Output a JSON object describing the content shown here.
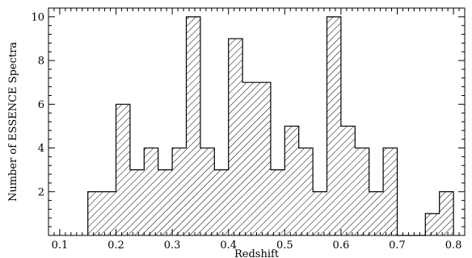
{
  "chart_data": {
    "type": "histogram",
    "title": "",
    "xlabel": "Redshift",
    "ylabel": "Number of ESSENCE Spectra",
    "xlim": [
      0.08,
      0.82
    ],
    "ylim": [
      0,
      10.4
    ],
    "bin_width": 0.025,
    "bins": [
      {
        "x0": 0.15,
        "count": 2
      },
      {
        "x0": 0.175,
        "count": 2
      },
      {
        "x0": 0.2,
        "count": 6
      },
      {
        "x0": 0.225,
        "count": 3
      },
      {
        "x0": 0.25,
        "count": 4
      },
      {
        "x0": 0.275,
        "count": 3
      },
      {
        "x0": 0.3,
        "count": 4
      },
      {
        "x0": 0.325,
        "count": 10
      },
      {
        "x0": 0.35,
        "count": 4
      },
      {
        "x0": 0.375,
        "count": 3
      },
      {
        "x0": 0.4,
        "count": 9
      },
      {
        "x0": 0.425,
        "count": 7
      },
      {
        "x0": 0.45,
        "count": 7
      },
      {
        "x0": 0.475,
        "count": 3
      },
      {
        "x0": 0.5,
        "count": 5
      },
      {
        "x0": 0.525,
        "count": 4
      },
      {
        "x0": 0.55,
        "count": 2
      },
      {
        "x0": 0.575,
        "count": 10
      },
      {
        "x0": 0.6,
        "count": 5
      },
      {
        "x0": 0.625,
        "count": 4
      },
      {
        "x0": 0.65,
        "count": 2
      },
      {
        "x0": 0.675,
        "count": 4
      },
      {
        "x0": 0.7,
        "count": 0
      },
      {
        "x0": 0.725,
        "count": 0
      },
      {
        "x0": 0.75,
        "count": 1
      },
      {
        "x0": 0.775,
        "count": 2
      }
    ],
    "x_ticks": [
      "0.1",
      "0.2",
      "0.3",
      "0.4",
      "0.5",
      "0.6",
      "0.7",
      "0.8"
    ],
    "y_ticks": [
      "2",
      "4",
      "6",
      "8",
      "10"
    ],
    "fill": "hatched",
    "grid": false,
    "legend": "none",
    "colors": {
      "line": "#000000",
      "background": "#ffffff"
    }
  }
}
